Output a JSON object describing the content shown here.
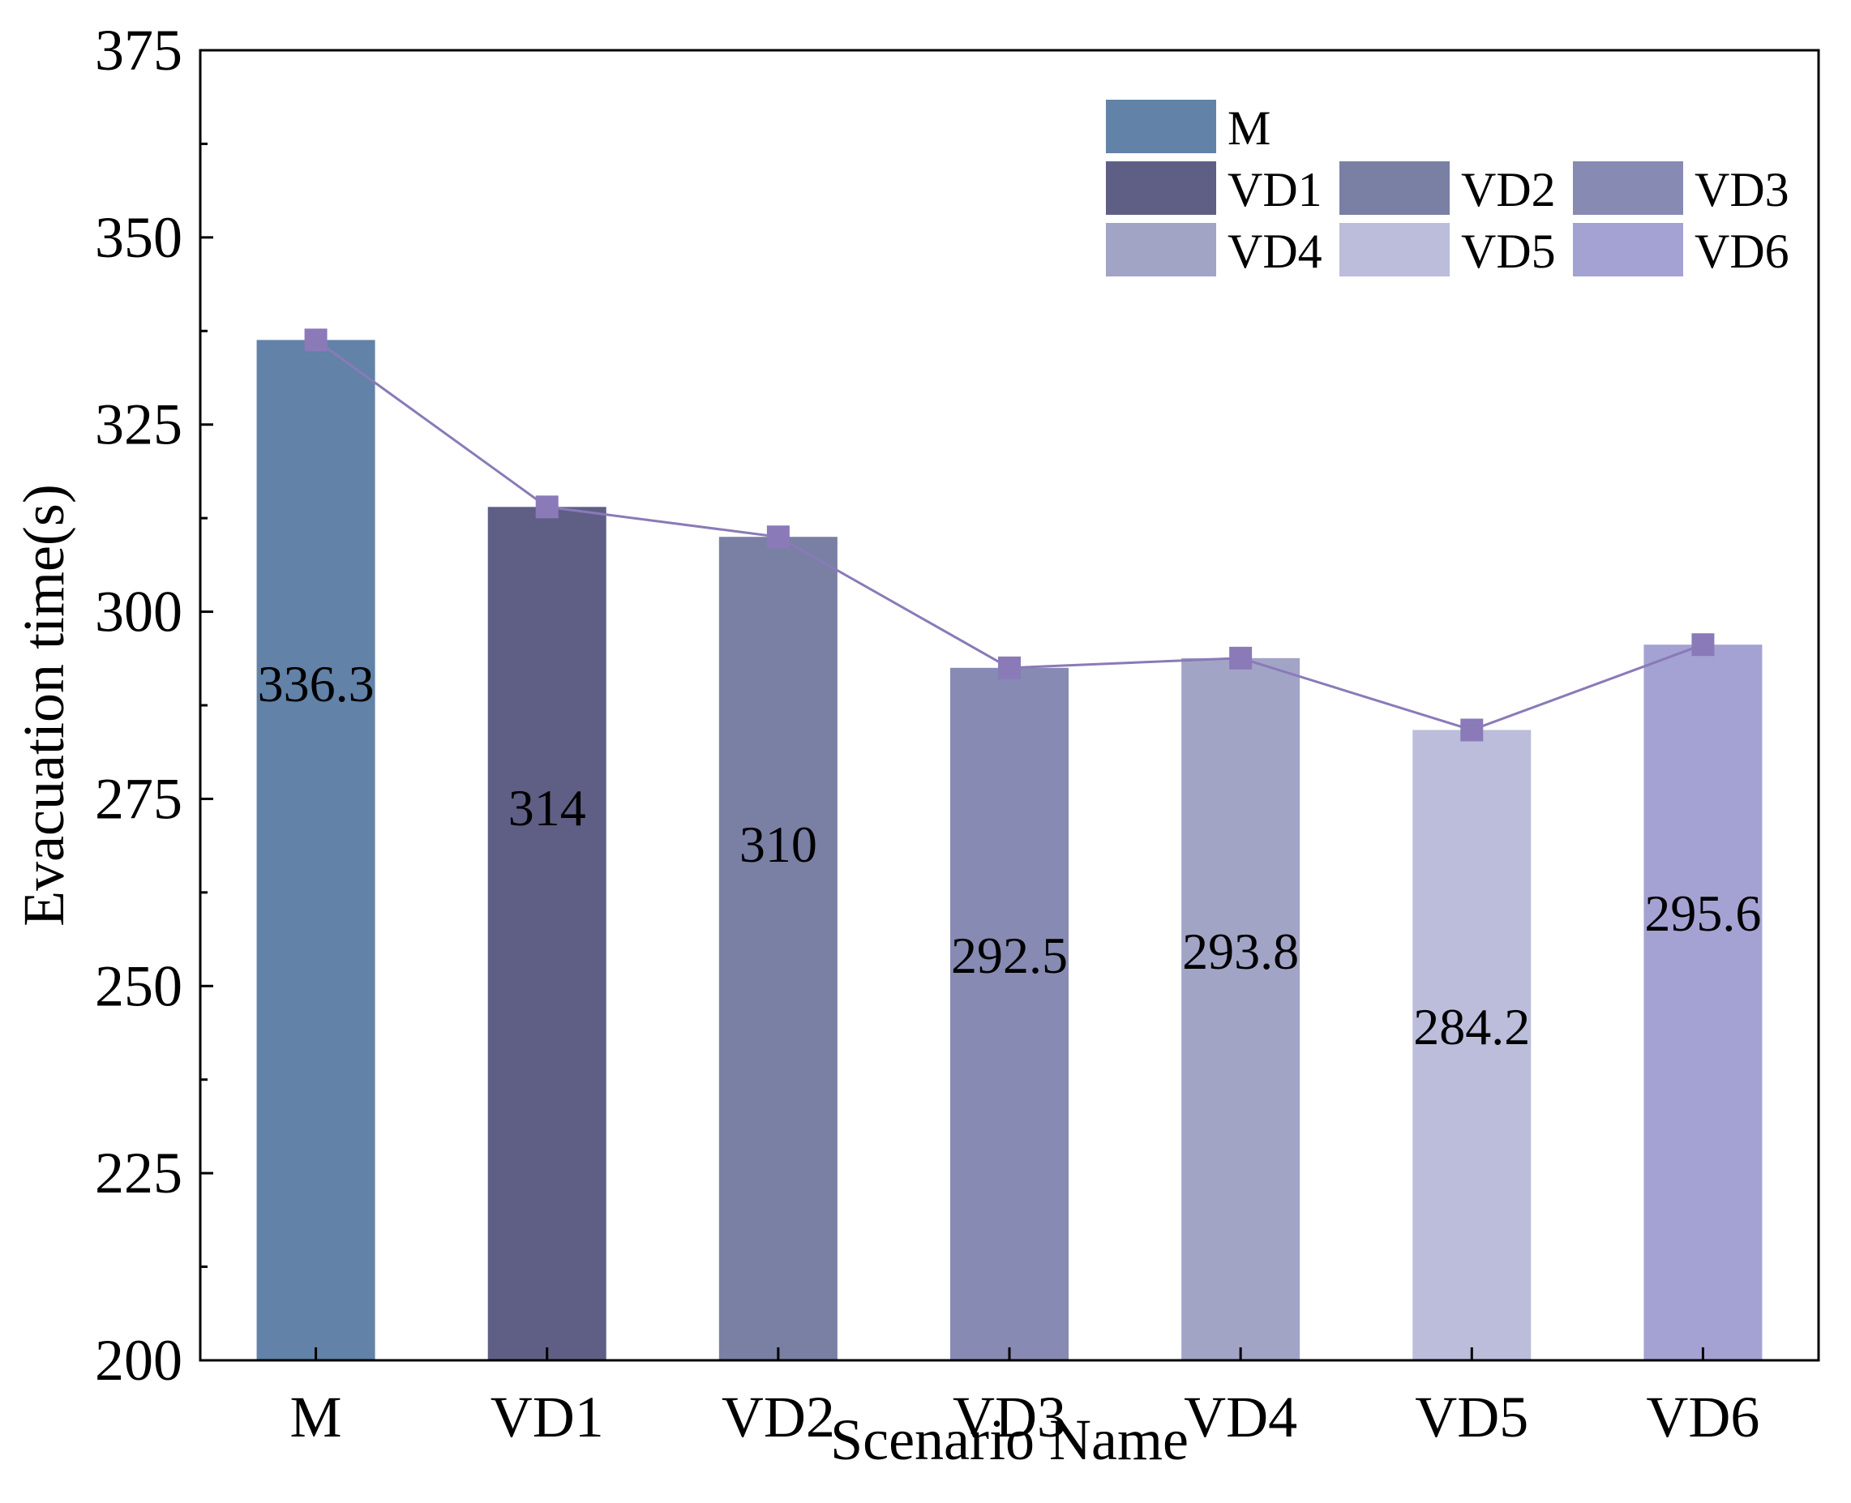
{
  "chart_data": {
    "type": "bar",
    "categories": [
      "M",
      "VD1",
      "VD2",
      "VD3",
      "VD4",
      "VD5",
      "VD6"
    ],
    "values": [
      336.3,
      314,
      310,
      292.5,
      293.8,
      284.2,
      295.6
    ],
    "data_labels": [
      "336.3",
      "314",
      "310",
      "292.5",
      "293.8",
      "284.2",
      "295.6"
    ],
    "overlay_line": {
      "type": "line",
      "marker": "square",
      "values": [
        336.3,
        314,
        310,
        292.5,
        293.8,
        284.2,
        295.6
      ],
      "color": "#8a7ab8"
    },
    "colors": [
      "#6282a8",
      "#5f5f85",
      "#7a7fa4",
      "#878ab2",
      "#a2a4c6",
      "#bbbddb",
      "#a4a2d2"
    ],
    "xlabel": "Scenario Name",
    "ylabel": "Evacuation time(s)",
    "ylim": [
      200,
      375
    ],
    "yticks": [
      200,
      225,
      250,
      275,
      300,
      325,
      350,
      375
    ],
    "legend": {
      "placement": "top-right",
      "entries": [
        "M",
        "VD1",
        "VD2",
        "VD3",
        "VD4",
        "VD5",
        "VD6"
      ]
    },
    "grid": false
  }
}
